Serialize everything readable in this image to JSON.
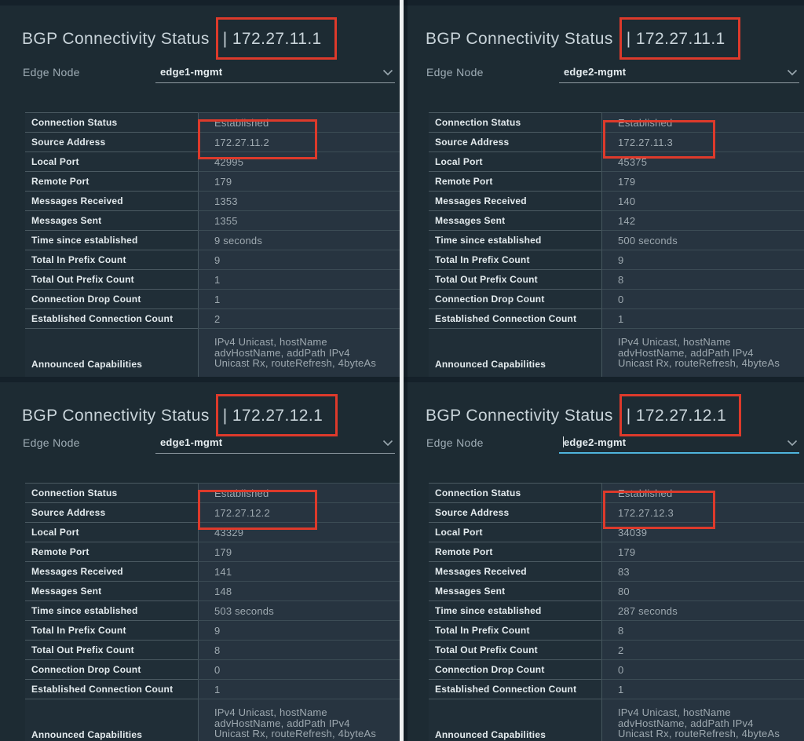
{
  "ui_colors": {
    "highlight_box_border": "#dd3a2b",
    "focused_underline": "#4fb4dc",
    "background": "#1d2b33"
  },
  "panels": [
    {
      "title_prefix": "BGP Connectivity Status",
      "title_highlight": "| 172.27.11.1",
      "edge_node_label": "Edge Node",
      "edge_node_value": "edge1-mgmt",
      "focused": false,
      "rows": [
        {
          "label": "Connection Status",
          "value": "Established"
        },
        {
          "label": "Source Address",
          "value": "172.27.11.2"
        },
        {
          "label": "Local Port",
          "value": "42995"
        },
        {
          "label": "Remote Port",
          "value": "179"
        },
        {
          "label": "Messages Received",
          "value": "1353"
        },
        {
          "label": "Messages Sent",
          "value": "1355"
        },
        {
          "label": "Time since established",
          "value": "9 seconds"
        },
        {
          "label": "Total In Prefix Count",
          "value": "9"
        },
        {
          "label": "Total Out Prefix Count",
          "value": "1"
        },
        {
          "label": "Connection Drop Count",
          "value": "1"
        },
        {
          "label": "Established Connection Count",
          "value": "2"
        },
        {
          "label": "Announced Capabilities",
          "value": "IPv4 Unicast, hostName advHostName, addPath IPv4 Unicast Rx, routeRefresh, 4byteAs"
        }
      ]
    },
    {
      "title_prefix": "BGP Connectivity Status",
      "title_highlight": "| 172.27.11.1",
      "edge_node_label": "Edge Node",
      "edge_node_value": "edge2-mgmt",
      "focused": false,
      "rows": [
        {
          "label": "Connection Status",
          "value": "Established"
        },
        {
          "label": "Source Address",
          "value": "172.27.11.3"
        },
        {
          "label": "Local Port",
          "value": "45375"
        },
        {
          "label": "Remote Port",
          "value": "179"
        },
        {
          "label": "Messages Received",
          "value": "140"
        },
        {
          "label": "Messages Sent",
          "value": "142"
        },
        {
          "label": "Time since established",
          "value": "500 seconds"
        },
        {
          "label": "Total In Prefix Count",
          "value": "9"
        },
        {
          "label": "Total Out Prefix Count",
          "value": "8"
        },
        {
          "label": "Connection Drop Count",
          "value": "0"
        },
        {
          "label": "Established Connection Count",
          "value": "1"
        },
        {
          "label": "Announced Capabilities",
          "value": "IPv4 Unicast, hostName advHostName, addPath IPv4 Unicast Rx, routeRefresh, 4byteAs"
        }
      ]
    },
    {
      "title_prefix": "BGP Connectivity Status",
      "title_highlight": "| 172.27.12.1",
      "edge_node_label": "Edge Node",
      "edge_node_value": "edge1-mgmt",
      "focused": false,
      "rows": [
        {
          "label": "Connection Status",
          "value": "Established"
        },
        {
          "label": "Source Address",
          "value": "172.27.12.2"
        },
        {
          "label": "Local Port",
          "value": "43329"
        },
        {
          "label": "Remote Port",
          "value": "179"
        },
        {
          "label": "Messages Received",
          "value": "141"
        },
        {
          "label": "Messages Sent",
          "value": "148"
        },
        {
          "label": "Time since established",
          "value": "503 seconds"
        },
        {
          "label": "Total In Prefix Count",
          "value": "9"
        },
        {
          "label": "Total Out Prefix Count",
          "value": "8"
        },
        {
          "label": "Connection Drop Count",
          "value": "0"
        },
        {
          "label": "Established Connection Count",
          "value": "1"
        },
        {
          "label": "Announced Capabilities",
          "value": "IPv4 Unicast, hostName advHostName, addPath IPv4 Unicast Rx, routeRefresh, 4byteAs"
        }
      ]
    },
    {
      "title_prefix": "BGP Connectivity Status",
      "title_highlight": "| 172.27.12.1",
      "edge_node_label": "Edge Node",
      "edge_node_value": "edge2-mgmt",
      "focused": true,
      "rows": [
        {
          "label": "Connection Status",
          "value": "Established"
        },
        {
          "label": "Source Address",
          "value": "172.27.12.3"
        },
        {
          "label": "Local Port",
          "value": "34039"
        },
        {
          "label": "Remote Port",
          "value": "179"
        },
        {
          "label": "Messages Received",
          "value": "83"
        },
        {
          "label": "Messages Sent",
          "value": "80"
        },
        {
          "label": "Time since established",
          "value": "287 seconds"
        },
        {
          "label": "Total In Prefix Count",
          "value": "8"
        },
        {
          "label": "Total Out Prefix Count",
          "value": "2"
        },
        {
          "label": "Connection Drop Count",
          "value": "0"
        },
        {
          "label": "Established Connection Count",
          "value": "1"
        },
        {
          "label": "Announced Capabilities",
          "value": "IPv4 Unicast, hostName advHostName, addPath IPv4 Unicast Rx, routeRefresh, 4byteAs"
        }
      ]
    }
  ]
}
